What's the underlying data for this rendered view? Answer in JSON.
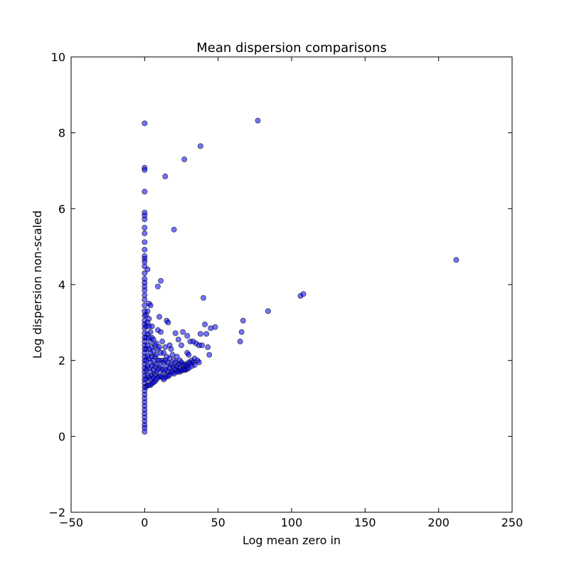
{
  "chart_data": {
    "type": "scatter",
    "title": "Mean dispersion comparisons",
    "xlabel": "Log mean zero in",
    "ylabel": "Log dispersion non-scaled",
    "xlim": [
      -50,
      250
    ],
    "ylim": [
      -2,
      10
    ],
    "xticks": [
      -50,
      0,
      50,
      100,
      150,
      200,
      250
    ],
    "yticks": [
      -2,
      0,
      2,
      4,
      6,
      8,
      10
    ],
    "xtick_labels": [
      "−50",
      "0",
      "50",
      "100",
      "150",
      "200",
      "250"
    ],
    "ytick_labels": [
      "−2",
      "0",
      "2",
      "4",
      "6",
      "8",
      "10"
    ],
    "grid": false,
    "marker_color": "#0000ff",
    "marker_alpha": 0.55,
    "points": [
      [
        0,
        8.25
      ],
      [
        0,
        7.08
      ],
      [
        0,
        7.02
      ],
      [
        0,
        6.45
      ],
      [
        0,
        5.9
      ],
      [
        0,
        5.82
      ],
      [
        0,
        5.72
      ],
      [
        0,
        5.5
      ],
      [
        0,
        5.35
      ],
      [
        0,
        5.12
      ],
      [
        0,
        4.92
      ],
      [
        0,
        4.75
      ],
      [
        0,
        4.68
      ],
      [
        0,
        4.6
      ],
      [
        0,
        4.48
      ],
      [
        0,
        4.3
      ],
      [
        0,
        4.15
      ],
      [
        0,
        4.05
      ],
      [
        0,
        3.95
      ],
      [
        0,
        3.85
      ],
      [
        0,
        3.72
      ],
      [
        0,
        3.6
      ],
      [
        0,
        3.45
      ],
      [
        0,
        3.3
      ],
      [
        0,
        3.18
      ],
      [
        0,
        3.05
      ],
      [
        0,
        2.95
      ],
      [
        0,
        2.85
      ],
      [
        0,
        2.72
      ],
      [
        0,
        2.6
      ],
      [
        0,
        2.5
      ],
      [
        0,
        2.4
      ],
      [
        0,
        2.3
      ],
      [
        0,
        2.2
      ],
      [
        0,
        2.1
      ],
      [
        0,
        2.0
      ],
      [
        0,
        1.9
      ],
      [
        0,
        1.8
      ],
      [
        0,
        1.7
      ],
      [
        0,
        1.6
      ],
      [
        0,
        1.5
      ],
      [
        0,
        1.4
      ],
      [
        0,
        1.3
      ],
      [
        0,
        1.2
      ],
      [
        0,
        1.1
      ],
      [
        0,
        1.0
      ],
      [
        0,
        0.9
      ],
      [
        0,
        0.8
      ],
      [
        0,
        0.7
      ],
      [
        0,
        0.6
      ],
      [
        0,
        0.5
      ],
      [
        0,
        0.4
      ],
      [
        0,
        0.3
      ],
      [
        0,
        0.22
      ],
      [
        0,
        0.12
      ],
      [
        1,
        3.2
      ],
      [
        1,
        2.9
      ],
      [
        1,
        2.6
      ],
      [
        1,
        2.3
      ],
      [
        1,
        2.0
      ],
      [
        1,
        1.75
      ],
      [
        1,
        1.5
      ],
      [
        1,
        1.3
      ],
      [
        2,
        4.4
      ],
      [
        2,
        3.3
      ],
      [
        2,
        3.0
      ],
      [
        2,
        2.7
      ],
      [
        2,
        2.4
      ],
      [
        2,
        2.1
      ],
      [
        2,
        1.85
      ],
      [
        2,
        1.6
      ],
      [
        2,
        1.35
      ],
      [
        3,
        3.5
      ],
      [
        3,
        3.1
      ],
      [
        3,
        2.9
      ],
      [
        3,
        2.6
      ],
      [
        3,
        2.3
      ],
      [
        3,
        2.05
      ],
      [
        3,
        1.8
      ],
      [
        3,
        1.55
      ],
      [
        3,
        1.35
      ],
      [
        4,
        3.45
      ],
      [
        4,
        2.75
      ],
      [
        4,
        2.5
      ],
      [
        4,
        2.2
      ],
      [
        4,
        1.95
      ],
      [
        4,
        1.7
      ],
      [
        4,
        1.5
      ],
      [
        4,
        1.35
      ],
      [
        5,
        2.9
      ],
      [
        5,
        2.6
      ],
      [
        5,
        2.35
      ],
      [
        5,
        2.1
      ],
      [
        5,
        1.85
      ],
      [
        5,
        1.6
      ],
      [
        5,
        1.4
      ],
      [
        6,
        2.55
      ],
      [
        6,
        2.25
      ],
      [
        6,
        2.0
      ],
      [
        6,
        1.75
      ],
      [
        6,
        1.55
      ],
      [
        6,
        1.42
      ],
      [
        7,
        2.4
      ],
      [
        7,
        2.1
      ],
      [
        7,
        1.85
      ],
      [
        7,
        1.62
      ],
      [
        7,
        1.45
      ],
      [
        8,
        2.45
      ],
      [
        8,
        2.15
      ],
      [
        8,
        1.9
      ],
      [
        8,
        1.7
      ],
      [
        8,
        1.5
      ],
      [
        9,
        3.95
      ],
      [
        9,
        2.8
      ],
      [
        9,
        2.3
      ],
      [
        9,
        2.0
      ],
      [
        9,
        1.75
      ],
      [
        9,
        1.55
      ],
      [
        10,
        3.15
      ],
      [
        10,
        2.35
      ],
      [
        10,
        2.0
      ],
      [
        10,
        1.8
      ],
      [
        10,
        1.58
      ],
      [
        11,
        4.1
      ],
      [
        11,
        2.75
      ],
      [
        11,
        2.2
      ],
      [
        11,
        1.85
      ],
      [
        11,
        1.6
      ],
      [
        12,
        2.5
      ],
      [
        12,
        2.0
      ],
      [
        12,
        1.75
      ],
      [
        12,
        1.55
      ],
      [
        13,
        2.2
      ],
      [
        13,
        1.95
      ],
      [
        13,
        1.7
      ],
      [
        13,
        1.5
      ],
      [
        14,
        6.85
      ],
      [
        14,
        2.35
      ],
      [
        14,
        2.0
      ],
      [
        14,
        1.75
      ],
      [
        14,
        1.55
      ],
      [
        15,
        3.05
      ],
      [
        15,
        2.1
      ],
      [
        15,
        1.85
      ],
      [
        15,
        1.6
      ],
      [
        16,
        3.0
      ],
      [
        16,
        1.95
      ],
      [
        16,
        1.72
      ],
      [
        16,
        1.58
      ],
      [
        17,
        2.4
      ],
      [
        17,
        2.05
      ],
      [
        17,
        1.8
      ],
      [
        17,
        1.62
      ],
      [
        18,
        2.3
      ],
      [
        18,
        1.9
      ],
      [
        18,
        1.7
      ],
      [
        19,
        2.15
      ],
      [
        19,
        1.85
      ],
      [
        19,
        1.68
      ],
      [
        20,
        5.45
      ],
      [
        20,
        2.0
      ],
      [
        20,
        1.8
      ],
      [
        20,
        1.65
      ],
      [
        21,
        2.72
      ],
      [
        21,
        1.95
      ],
      [
        21,
        1.75
      ],
      [
        22,
        2.1
      ],
      [
        22,
        1.85
      ],
      [
        22,
        1.7
      ],
      [
        23,
        2.55
      ],
      [
        23,
        1.9
      ],
      [
        23,
        1.72
      ],
      [
        24,
        2.0
      ],
      [
        24,
        1.8
      ],
      [
        24,
        1.7
      ],
      [
        25,
        2.4
      ],
      [
        25,
        1.95
      ],
      [
        25,
        1.75
      ],
      [
        26,
        2.75
      ],
      [
        26,
        1.88
      ],
      [
        26,
        1.74
      ],
      [
        27,
        7.3
      ],
      [
        27,
        1.9
      ],
      [
        27,
        1.76
      ],
      [
        28,
        1.85
      ],
      [
        28,
        1.75
      ],
      [
        29,
        2.65
      ],
      [
        29,
        2.2
      ],
      [
        29,
        1.9
      ],
      [
        29,
        1.78
      ],
      [
        30,
        2.15
      ],
      [
        30,
        1.95
      ],
      [
        30,
        1.8
      ],
      [
        31,
        2.5
      ],
      [
        31,
        1.92
      ],
      [
        32,
        2.0
      ],
      [
        32,
        1.85
      ],
      [
        33,
        2.5
      ],
      [
        33,
        1.95
      ],
      [
        34,
        2.05
      ],
      [
        34,
        1.88
      ],
      [
        35,
        2.45
      ],
      [
        36,
        2.0
      ],
      [
        37,
        2.4
      ],
      [
        37,
        1.95
      ],
      [
        38,
        7.65
      ],
      [
        38,
        2.7
      ],
      [
        39,
        2.4
      ],
      [
        40,
        3.65
      ],
      [
        41,
        2.95
      ],
      [
        42,
        2.7
      ],
      [
        43,
        2.35
      ],
      [
        44,
        2.15
      ],
      [
        45,
        2.85
      ],
      [
        48,
        2.88
      ],
      [
        65,
        2.5
      ],
      [
        66,
        2.75
      ],
      [
        67,
        3.05
      ],
      [
        77,
        8.32
      ],
      [
        84,
        3.3
      ],
      [
        106,
        3.7
      ],
      [
        108,
        3.75
      ],
      [
        212,
        4.65
      ]
    ]
  }
}
